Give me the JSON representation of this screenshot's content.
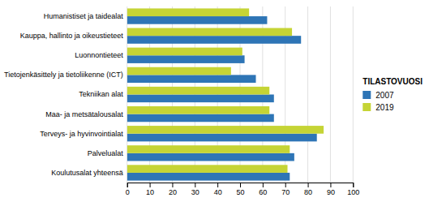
{
  "chart_data": {
    "type": "bar",
    "orientation": "horizontal",
    "categories": [
      "Humanistiset ja taidealat",
      "Kauppa, hallinto ja oikeustieteet",
      "Luonnontieteet",
      "Tietojenkäsittely ja tietoliikenne (ICT)",
      "Tekniikan alat",
      "Maa- ja metsätalousalat",
      "Terveys- ja hyvinvointialat",
      "Palvelualat",
      "Koulutusalat yhteensä"
    ],
    "series": [
      {
        "name": "2007",
        "color": "#2e75b6",
        "values": [
          62,
          77,
          52,
          57,
          65,
          65,
          84,
          74,
          72
        ]
      },
      {
        "name": "2019",
        "color": "#c5d435",
        "values": [
          54,
          73,
          51,
          46,
          63,
          63,
          87,
          72,
          71
        ]
      }
    ],
    "legend_title": "TILASTOVUOSI",
    "legend": "right",
    "xlim": [
      0,
      100
    ],
    "xticks": [
      0,
      10,
      20,
      30,
      40,
      50,
      60,
      70,
      80,
      90,
      100
    ],
    "grid": true
  }
}
